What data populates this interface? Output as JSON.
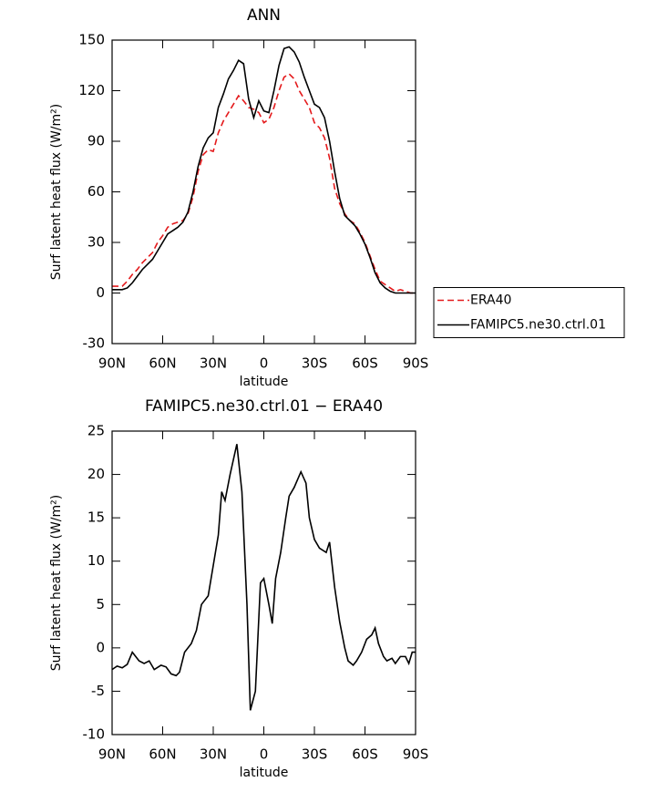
{
  "chart_data": [
    {
      "type": "line",
      "title": "ANN",
      "xlabel": "latitude",
      "ylabel": "Surf latent heat flux (W/m²)",
      "x": [
        90,
        87,
        84,
        81,
        78,
        75,
        72,
        69,
        66,
        63,
        60,
        57,
        54,
        51,
        48,
        45,
        42,
        39,
        36,
        33,
        30,
        27,
        24,
        21,
        18,
        15,
        12,
        9,
        6,
        3,
        0,
        -3,
        -6,
        -9,
        -12,
        -15,
        -18,
        -21,
        -24,
        -27,
        -30,
        -33,
        -36,
        -39,
        -42,
        -45,
        -48,
        -51,
        -54,
        -57,
        -60,
        -63,
        -66,
        -69,
        -72,
        -75,
        -78,
        -81,
        -84,
        -87,
        -90
      ],
      "series": [
        {
          "name": "ERA40",
          "color": "#e41a1c",
          "dash": true,
          "values": [
            4,
            4,
            4,
            7,
            11,
            14,
            18,
            21,
            24,
            30,
            34,
            39,
            41,
            42,
            43,
            47,
            57,
            72,
            82,
            85,
            84,
            95,
            102,
            107,
            112,
            117,
            114,
            110,
            109,
            107,
            101,
            103,
            110,
            120,
            128,
            130,
            127,
            120,
            115,
            110,
            101,
            98,
            92,
            80,
            62,
            53,
            47,
            43,
            41,
            36,
            30,
            22,
            14,
            7,
            5,
            3,
            1,
            2,
            1,
            0,
            0
          ]
        },
        {
          "name": "FAMIPC5.ne30.ctrl.01",
          "color": "#000000",
          "dash": false,
          "values": [
            2,
            2,
            2,
            3,
            6,
            10,
            14,
            17,
            20,
            25,
            30,
            35,
            37,
            39,
            42,
            48,
            60,
            75,
            86,
            92,
            95,
            110,
            118,
            127,
            132,
            138,
            136,
            115,
            104,
            114,
            108,
            107,
            120,
            135,
            145,
            146,
            143,
            137,
            128,
            120,
            112,
            110,
            104,
            90,
            72,
            56,
            46,
            43,
            40,
            35,
            29,
            21,
            12,
            6,
            3,
            1,
            0,
            0,
            0,
            0,
            0
          ]
        }
      ],
      "xlim": [
        90,
        -90
      ],
      "xticks": [
        {
          "value": 90,
          "label": "90N"
        },
        {
          "value": 60,
          "label": "60N"
        },
        {
          "value": 30,
          "label": "30N"
        },
        0,
        {
          "value": -30,
          "label": "30S"
        },
        {
          "value": -60,
          "label": "60S"
        },
        {
          "value": -90,
          "label": "90S"
        }
      ],
      "ylim": [
        -30,
        150
      ],
      "yticks": [
        -30,
        0,
        30,
        60,
        90,
        120,
        150
      ],
      "legend": "right"
    },
    {
      "type": "line",
      "title": "FAMIPC5.ne30.ctrl.01 − ERA40",
      "xlabel": "latitude",
      "ylabel": "Surf latent heat flux (W/m²)",
      "x": [
        90,
        87,
        84,
        81,
        78,
        74,
        71,
        68,
        65,
        61,
        58,
        55,
        52,
        50,
        47,
        43,
        40,
        37,
        33,
        30,
        27,
        25,
        23,
        20,
        16,
        13,
        10,
        8,
        5,
        2,
        0,
        -3,
        -5,
        -7,
        -10,
        -13,
        -15,
        -18,
        -22,
        -25,
        -27,
        -30,
        -33,
        -37,
        -39,
        -42,
        -45,
        -48,
        -50,
        -53,
        -55,
        -58,
        -61,
        -64,
        -66,
        -68,
        -71,
        -73,
        -76,
        -78,
        -81,
        -84,
        -86,
        -88,
        -90
      ],
      "values": [
        -2.5,
        -2.1,
        -2.3,
        -1.9,
        -0.5,
        -1.5,
        -1.8,
        -1.5,
        -2.5,
        -2,
        -2.2,
        -3,
        -3.2,
        -2.8,
        -0.5,
        0.5,
        2,
        5,
        6,
        9.5,
        13,
        18,
        17,
        20,
        23.5,
        18,
        5,
        -7.2,
        -5,
        7.5,
        8,
        5,
        2.8,
        8,
        11,
        15,
        17.5,
        18.5,
        20.3,
        19,
        15,
        12.5,
        11.5,
        11,
        12.2,
        7,
        3,
        0,
        -1.5,
        -2,
        -1.5,
        -0.5,
        1,
        1.5,
        2.3,
        0.5,
        -1,
        -1.5,
        -1.2,
        -1.8,
        -1,
        -1,
        -1.8,
        -0.5,
        -0.5
      ],
      "color": "#000000",
      "xlim": [
        90,
        -90
      ],
      "xticks": [
        {
          "value": 90,
          "label": "90N"
        },
        {
          "value": 60,
          "label": "60N"
        },
        {
          "value": 30,
          "label": "30N"
        },
        0,
        {
          "value": -30,
          "label": "30S"
        },
        {
          "value": -60,
          "label": "60S"
        },
        {
          "value": -90,
          "label": "90S"
        }
      ],
      "ylim": [
        -10,
        25
      ],
      "yticks": [
        -10,
        -5,
        0,
        5,
        10,
        15,
        20,
        25
      ]
    }
  ]
}
